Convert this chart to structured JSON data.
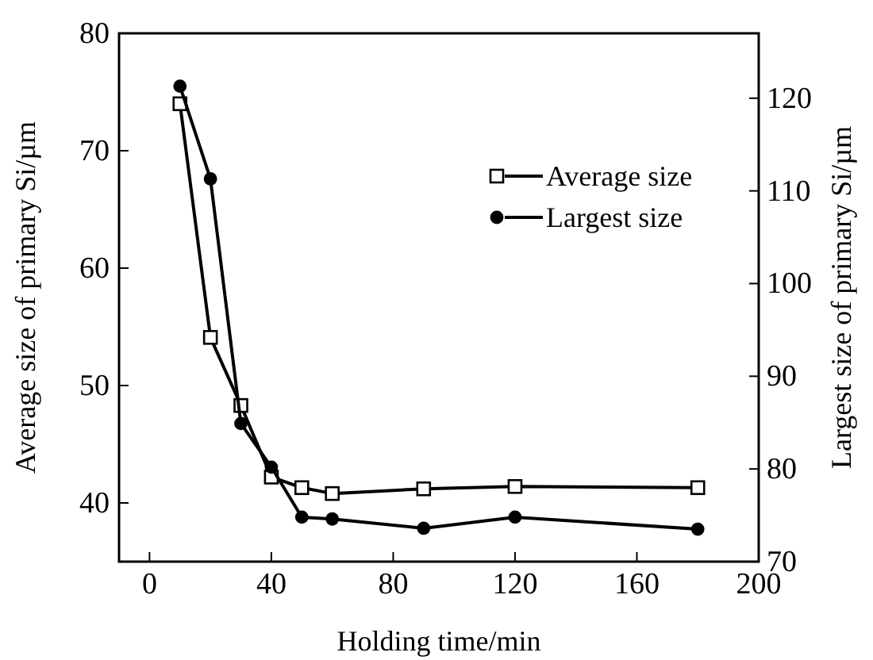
{
  "chart_data": {
    "type": "line",
    "xlabel": "Holding time/min",
    "ylabel": "Average size of primary Si/µm",
    "y2label": "Largest size of primary Si/µm",
    "x": [
      10,
      20,
      30,
      40,
      50,
      60,
      90,
      120,
      180
    ],
    "series": [
      {
        "name": "Average size",
        "color": "#000000",
        "marker": "square",
        "values": [
          74.0,
          54.1,
          48.3,
          42.2,
          41.3,
          40.8,
          41.2,
          41.4,
          41.3
        ]
      },
      {
        "name": "Largest size",
        "color": "#000000",
        "marker": "circle",
        "axis": "y2",
        "values": [
          121.3,
          111.3,
          84.9,
          80.2,
          74.8,
          74.6,
          73.6,
          74.8,
          73.5
        ]
      }
    ],
    "xlim": [
      -10,
      200
    ],
    "xticks": [
      0,
      40,
      80,
      120,
      160,
      200
    ],
    "ylim": [
      35,
      80
    ],
    "yticks": [
      40,
      50,
      60,
      70,
      80
    ],
    "y2lim": [
      70,
      127
    ],
    "y2ticks": [
      70,
      80,
      90,
      100,
      110,
      120
    ],
    "legend": "top right",
    "grid": false,
    "line_style": "solid"
  }
}
